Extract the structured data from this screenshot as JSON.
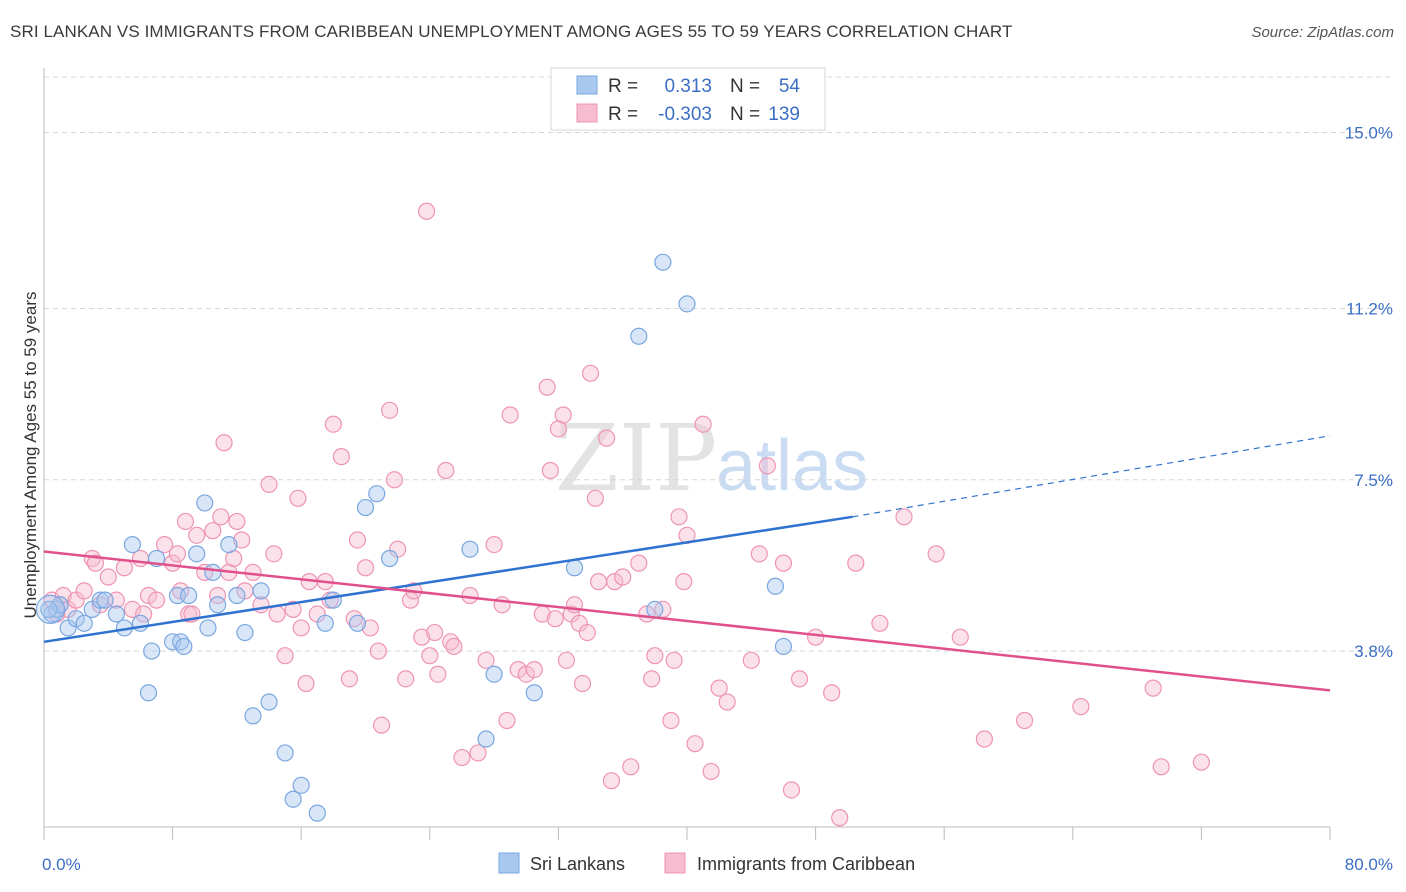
{
  "title": "SRI LANKAN VS IMMIGRANTS FROM CARIBBEAN UNEMPLOYMENT AMONG AGES 55 TO 59 YEARS CORRELATION CHART",
  "source": "Source: ZipAtlas.com",
  "watermark": {
    "zip": "ZIP",
    "atlas": "atlas"
  },
  "colors": {
    "blue_fill": "#a9c8f0",
    "blue_stroke": "#7aa7e0",
    "blue_line": "#2f72d0",
    "pink_fill": "#f7bcd0",
    "pink_stroke": "#ee94b4",
    "pink_line": "#e0508a",
    "tick_text": "#3b6fc4",
    "grid": "#d7d7d7"
  },
  "legend_top": {
    "rows": [
      {
        "r_label": "R =",
        "r_value": "0.313",
        "n_label": "N =",
        "n_value": "54",
        "color": "blue"
      },
      {
        "r_label": "R =",
        "r_value": "-0.303",
        "n_label": "N =",
        "n_value": "139",
        "color": "pink"
      }
    ]
  },
  "chart_data": {
    "type": "scatter",
    "title": "SRI LANKAN VS IMMIGRANTS FROM CARIBBEAN UNEMPLOYMENT AMONG AGES 55 TO 59 YEARS CORRELATION CHART",
    "xlabel": "",
    "ylabel": "Unemployment Among Ages 55 to 59 years",
    "xlim": [
      0,
      80
    ],
    "ylim": [
      0,
      16.2
    ],
    "x_tick_labels": {
      "left": "0.0%",
      "right": "80.0%"
    },
    "y_ticks": [
      {
        "value": 3.8,
        "label": "3.8%"
      },
      {
        "value": 7.5,
        "label": "7.5%"
      },
      {
        "value": 11.2,
        "label": "11.2%"
      },
      {
        "value": 15.0,
        "label": "15.0%"
      }
    ],
    "grid": "horizontal dashed",
    "legend_position": "bottom-center",
    "series": [
      {
        "name": "Sri Lankans",
        "color": "blue",
        "trend": {
          "x0": 0,
          "y0": 4.0,
          "x1": 50.3,
          "y1": 6.7,
          "dash_to_x": 80,
          "dash_to_y": 8.45
        },
        "points": [
          [
            0.5,
            4.6
          ],
          [
            0.8,
            4.7
          ],
          [
            1.0,
            4.8
          ],
          [
            1.5,
            4.3
          ],
          [
            2.0,
            4.5
          ],
          [
            2.5,
            4.4
          ],
          [
            3.0,
            4.7
          ],
          [
            3.5,
            4.9
          ],
          [
            3.8,
            4.9
          ],
          [
            4.5,
            4.6
          ],
          [
            5.0,
            4.3
          ],
          [
            5.5,
            6.1
          ],
          [
            6.0,
            4.4
          ],
          [
            6.5,
            2.9
          ],
          [
            6.7,
            3.8
          ],
          [
            7.0,
            5.8
          ],
          [
            8.0,
            4.0
          ],
          [
            8.5,
            4.0
          ],
          [
            8.7,
            3.9
          ],
          [
            8.3,
            5.0
          ],
          [
            9.0,
            5.0
          ],
          [
            9.5,
            5.9
          ],
          [
            10.0,
            7.0
          ],
          [
            10.2,
            4.3
          ],
          [
            10.5,
            5.5
          ],
          [
            10.8,
            4.8
          ],
          [
            11.5,
            6.1
          ],
          [
            12.0,
            5.0
          ],
          [
            12.5,
            4.2
          ],
          [
            13.0,
            2.4
          ],
          [
            13.5,
            5.1
          ],
          [
            14.0,
            2.7
          ],
          [
            15.0,
            1.6
          ],
          [
            15.5,
            0.6
          ],
          [
            16.0,
            0.9
          ],
          [
            17.0,
            0.3
          ],
          [
            17.5,
            4.4
          ],
          [
            18.0,
            4.9
          ],
          [
            19.5,
            4.4
          ],
          [
            20.0,
            6.9
          ],
          [
            20.7,
            7.2
          ],
          [
            21.5,
            5.8
          ],
          [
            26.5,
            6.0
          ],
          [
            27.5,
            1.9
          ],
          [
            28.0,
            3.3
          ],
          [
            30.5,
            2.9
          ],
          [
            33.0,
            5.6
          ],
          [
            37.0,
            10.6
          ],
          [
            38.0,
            4.7
          ],
          [
            38.5,
            12.2
          ],
          [
            40.0,
            11.3
          ],
          [
            45.5,
            5.2
          ],
          [
            46.0,
            3.9
          ],
          [
            0.3,
            4.7
          ]
        ]
      },
      {
        "name": "Immigrants from Caribbean",
        "color": "pink",
        "trend": {
          "x0": 0,
          "y0": 5.95,
          "x1": 80,
          "y1": 2.95
        },
        "points": [
          [
            0.5,
            4.9
          ],
          [
            1.0,
            4.8
          ],
          [
            1.2,
            5.0
          ],
          [
            1.5,
            4.7
          ],
          [
            2.0,
            4.9
          ],
          [
            2.5,
            5.1
          ],
          [
            3.0,
            5.8
          ],
          [
            3.2,
            5.7
          ],
          [
            3.5,
            4.8
          ],
          [
            4.0,
            5.4
          ],
          [
            4.5,
            4.9
          ],
          [
            5.0,
            5.6
          ],
          [
            5.5,
            4.7
          ],
          [
            6.0,
            5.8
          ],
          [
            6.2,
            4.6
          ],
          [
            6.5,
            5.0
          ],
          [
            7.0,
            4.9
          ],
          [
            7.5,
            6.1
          ],
          [
            8.0,
            5.7
          ],
          [
            8.3,
            5.9
          ],
          [
            8.5,
            5.1
          ],
          [
            8.8,
            6.6
          ],
          [
            9.0,
            4.6
          ],
          [
            9.2,
            4.6
          ],
          [
            9.5,
            6.3
          ],
          [
            10.0,
            5.5
          ],
          [
            10.5,
            6.4
          ],
          [
            10.8,
            5.0
          ],
          [
            11.0,
            6.7
          ],
          [
            11.2,
            8.3
          ],
          [
            11.5,
            5.5
          ],
          [
            11.8,
            5.8
          ],
          [
            12.0,
            6.6
          ],
          [
            12.3,
            6.2
          ],
          [
            12.5,
            5.1
          ],
          [
            13.0,
            5.5
          ],
          [
            13.5,
            4.8
          ],
          [
            14.0,
            7.4
          ],
          [
            14.3,
            5.9
          ],
          [
            14.5,
            4.6
          ],
          [
            15.0,
            3.7
          ],
          [
            15.5,
            4.7
          ],
          [
            15.8,
            7.1
          ],
          [
            16.0,
            4.3
          ],
          [
            16.3,
            3.1
          ],
          [
            16.5,
            5.3
          ],
          [
            17.0,
            4.6
          ],
          [
            17.5,
            5.3
          ],
          [
            17.8,
            4.9
          ],
          [
            18.0,
            8.7
          ],
          [
            18.5,
            8.0
          ],
          [
            19.0,
            3.2
          ],
          [
            19.3,
            4.5
          ],
          [
            19.5,
            6.2
          ],
          [
            20.0,
            5.6
          ],
          [
            20.3,
            4.3
          ],
          [
            20.8,
            3.8
          ],
          [
            21.0,
            2.2
          ],
          [
            21.5,
            9.0
          ],
          [
            21.8,
            7.5
          ],
          [
            22.0,
            6.0
          ],
          [
            22.5,
            3.2
          ],
          [
            22.8,
            4.9
          ],
          [
            23.0,
            5.1
          ],
          [
            23.5,
            4.1
          ],
          [
            23.8,
            13.3
          ],
          [
            24.0,
            3.7
          ],
          [
            24.3,
            4.2
          ],
          [
            24.5,
            3.3
          ],
          [
            25.0,
            7.7
          ],
          [
            25.3,
            4.0
          ],
          [
            25.5,
            3.9
          ],
          [
            26.0,
            1.5
          ],
          [
            26.5,
            5.0
          ],
          [
            27.0,
            1.6
          ],
          [
            27.5,
            3.6
          ],
          [
            28.0,
            6.1
          ],
          [
            28.5,
            4.8
          ],
          [
            28.8,
            2.3
          ],
          [
            29.0,
            8.9
          ],
          [
            29.5,
            3.4
          ],
          [
            30.0,
            3.3
          ],
          [
            30.5,
            3.4
          ],
          [
            31.0,
            4.6
          ],
          [
            31.3,
            9.5
          ],
          [
            31.5,
            7.7
          ],
          [
            31.8,
            4.5
          ],
          [
            32.0,
            8.6
          ],
          [
            32.3,
            8.9
          ],
          [
            32.5,
            3.6
          ],
          [
            32.8,
            4.6
          ],
          [
            33.0,
            4.8
          ],
          [
            33.3,
            4.4
          ],
          [
            33.5,
            3.1
          ],
          [
            33.8,
            4.2
          ],
          [
            34.0,
            9.8
          ],
          [
            34.3,
            7.1
          ],
          [
            34.5,
            5.3
          ],
          [
            35.0,
            8.4
          ],
          [
            35.3,
            1.0
          ],
          [
            35.5,
            5.3
          ],
          [
            36.0,
            5.4
          ],
          [
            36.5,
            1.3
          ],
          [
            37.0,
            5.7
          ],
          [
            37.5,
            4.6
          ],
          [
            37.8,
            3.2
          ],
          [
            38.0,
            3.7
          ],
          [
            38.5,
            4.7
          ],
          [
            39.0,
            2.3
          ],
          [
            39.2,
            3.6
          ],
          [
            39.5,
            6.7
          ],
          [
            39.8,
            5.3
          ],
          [
            40.0,
            6.3
          ],
          [
            40.5,
            1.8
          ],
          [
            41.0,
            8.7
          ],
          [
            41.5,
            1.2
          ],
          [
            42.0,
            3.0
          ],
          [
            42.5,
            2.7
          ],
          [
            44.0,
            3.6
          ],
          [
            44.5,
            5.9
          ],
          [
            45.0,
            7.8
          ],
          [
            46.0,
            5.7
          ],
          [
            46.5,
            0.8
          ],
          [
            47.0,
            3.2
          ],
          [
            48.0,
            4.1
          ],
          [
            49.0,
            2.9
          ],
          [
            49.5,
            0.2
          ],
          [
            50.5,
            5.7
          ],
          [
            52.0,
            4.4
          ],
          [
            53.5,
            6.7
          ],
          [
            55.5,
            5.9
          ],
          [
            57.0,
            4.1
          ],
          [
            58.5,
            1.9
          ],
          [
            61.0,
            2.3
          ],
          [
            64.5,
            2.6
          ],
          [
            69.0,
            3.0
          ],
          [
            69.5,
            1.3
          ],
          [
            72.0,
            1.4
          ],
          [
            0.8,
            4.6
          ]
        ]
      }
    ]
  },
  "legend_bottom": {
    "items": [
      {
        "label": "Sri Lankans",
        "color": "blue"
      },
      {
        "label": "Immigrants from Caribbean",
        "color": "pink"
      }
    ]
  }
}
